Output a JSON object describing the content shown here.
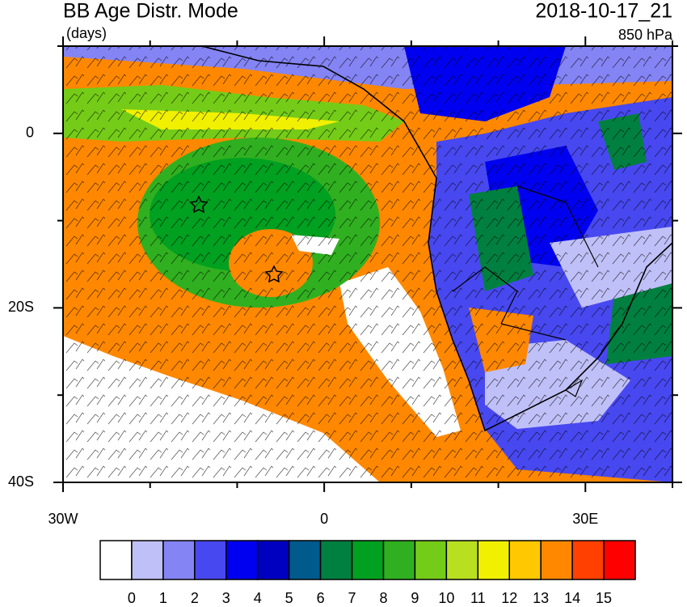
{
  "map": {
    "title": "BB Age Distr. Mode",
    "units": "(days)",
    "time": "2018-10-17_21",
    "level": "850 hPa",
    "lonlim": [
      -30,
      40
    ],
    "latlim": [
      -40,
      10
    ],
    "lonticks": [
      {
        "value": -30,
        "label": "30W"
      },
      0,
      {
        "value": 30,
        "label": "30E"
      }
    ],
    "latticks": [
      0,
      {
        "value": -20,
        "label": "20S"
      },
      {
        "value": -40,
        "label": "40S"
      }
    ],
    "lon_minor_ticks": [
      -20,
      -10,
      10,
      20,
      40
    ],
    "lat_minor_ticks": [
      10,
      -10,
      -30
    ],
    "colorbar": {
      "labels": [
        0,
        1,
        2,
        3,
        4,
        5,
        6,
        7,
        8,
        9,
        10,
        11,
        12,
        13,
        14,
        15
      ],
      "colors": [
        "#ffffff",
        "#c0c0f8",
        "#8484f4",
        "#4848f0",
        "#0000f0",
        "#0000c0",
        "#005a8c",
        "#008040",
        "#00a020",
        "#30b020",
        "#74cc18",
        "#b8e020",
        "#f0f000",
        "#ffc800",
        "#ff8800",
        "#ff4000",
        "#ff0000"
      ]
    }
  }
}
